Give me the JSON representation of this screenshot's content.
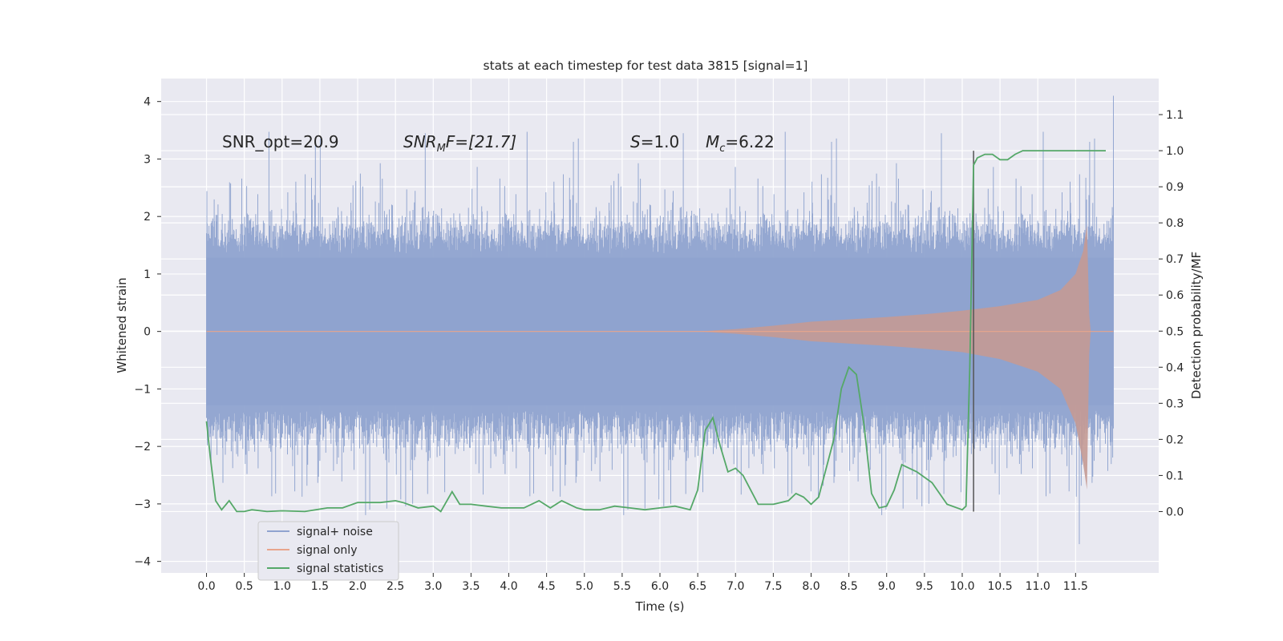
{
  "chart_data": {
    "type": "line",
    "title": "stats at each timestep for test data 3815 [signal=1]",
    "xlabel": "Time (s)",
    "ylabel": "Whitened strain",
    "ylabel_right": "Detection probability/MF",
    "xlim": [
      -0.6,
      12.6
    ],
    "ylim": [
      -4.2,
      4.4
    ],
    "ylim_right": [
      -0.17,
      1.2
    ],
    "x_ticks": [
      "0.0",
      "0.5",
      "1.0",
      "1.5",
      "2.0",
      "2.5",
      "3.0",
      "3.5",
      "4.0",
      "4.5",
      "5.0",
      "5.5",
      "6.0",
      "6.5",
      "7.0",
      "7.5",
      "8.0",
      "8.5",
      "9.0",
      "9.5",
      "10.0",
      "10.5",
      "11.0",
      "11.5"
    ],
    "y_ticks": [
      "4",
      "3",
      "2",
      "1",
      "0",
      "−1",
      "−2",
      "−3",
      "−4"
    ],
    "y_ticks_right": [
      "1.1",
      "1.0",
      "0.9",
      "0.8",
      "0.7",
      "0.6",
      "0.5",
      "0.4",
      "0.3",
      "0.2",
      "0.1",
      "0.0"
    ],
    "grid": true,
    "legend_position": "bottom-left",
    "annotations": {
      "snr_opt": "SNR_opt=20.9",
      "snr_mf_base": "SNR",
      "snr_mf_sub": "M",
      "snr_mf_rest": "F=[21.7]",
      "s_var": "S",
      "s_rest": "=1.0",
      "mc_var": "M",
      "mc_sub": "c",
      "mc_rest": "=6.22"
    },
    "series": [
      {
        "name": "signal+ noise",
        "color": "#8fa3cf",
        "band": {
          "x_range": [
            0.0,
            12.0
          ],
          "typical_amplitude": 1.35,
          "peak_extremes": [
            4.1,
            -3.7
          ]
        }
      },
      {
        "name": "signal only",
        "color": "#e8a58c",
        "fill": "#c49a94",
        "envelope": {
          "x": [
            0.0,
            6.5,
            7.0,
            7.5,
            8.0,
            8.5,
            9.0,
            9.5,
            10.0,
            10.5,
            11.0,
            11.3,
            11.5,
            11.6,
            11.65,
            11.68,
            11.7
          ],
          "y": [
            0.0,
            0.0,
            0.04,
            0.1,
            0.17,
            0.21,
            0.25,
            0.3,
            0.36,
            0.44,
            0.55,
            0.72,
            1.0,
            1.4,
            1.85,
            0.3,
            0.0
          ],
          "y_low": [
            0.0,
            0.0,
            -0.04,
            -0.1,
            -0.17,
            -0.21,
            -0.25,
            -0.3,
            -0.36,
            -0.48,
            -0.7,
            -1.0,
            -1.6,
            -2.3,
            -2.75,
            -0.4,
            0.0
          ]
        }
      },
      {
        "name": "signal statistics",
        "color": "#55a868",
        "axis": "right",
        "x": [
          0.0,
          0.05,
          0.12,
          0.2,
          0.3,
          0.4,
          0.5,
          0.6,
          0.8,
          1.0,
          1.3,
          1.6,
          1.8,
          2.0,
          2.3,
          2.5,
          2.6,
          2.8,
          3.0,
          3.1,
          3.25,
          3.35,
          3.5,
          3.7,
          3.9,
          4.0,
          4.2,
          4.4,
          4.55,
          4.7,
          4.9,
          5.0,
          5.2,
          5.4,
          5.6,
          5.8,
          6.0,
          6.2,
          6.4,
          6.5,
          6.6,
          6.7,
          6.8,
          6.9,
          7.0,
          7.1,
          7.2,
          7.3,
          7.5,
          7.7,
          7.8,
          7.9,
          8.0,
          8.1,
          8.3,
          8.4,
          8.5,
          8.55,
          8.6,
          8.7,
          8.8,
          8.9,
          9.0,
          9.1,
          9.2,
          9.3,
          9.4,
          9.6,
          9.8,
          10.0,
          10.05,
          10.1,
          10.15,
          10.2,
          10.3,
          10.4,
          10.5,
          10.6,
          10.7,
          10.8,
          11.0,
          11.5,
          11.9
        ],
        "y": [
          0.25,
          0.15,
          0.03,
          0.005,
          0.03,
          0.0,
          0.0,
          0.005,
          0.0,
          0.002,
          0.0,
          0.01,
          0.01,
          0.025,
          0.025,
          0.03,
          0.025,
          0.01,
          0.015,
          0.0,
          0.055,
          0.02,
          0.02,
          0.015,
          0.01,
          0.01,
          0.01,
          0.03,
          0.01,
          0.03,
          0.01,
          0.005,
          0.005,
          0.015,
          0.01,
          0.005,
          0.01,
          0.015,
          0.005,
          0.06,
          0.225,
          0.26,
          0.18,
          0.11,
          0.12,
          0.1,
          0.06,
          0.02,
          0.02,
          0.03,
          0.05,
          0.04,
          0.02,
          0.04,
          0.2,
          0.34,
          0.4,
          0.39,
          0.38,
          0.24,
          0.05,
          0.01,
          0.015,
          0.06,
          0.13,
          0.12,
          0.11,
          0.08,
          0.02,
          0.005,
          0.015,
          0.4,
          0.96,
          0.98,
          0.99,
          0.99,
          0.975,
          0.975,
          0.99,
          1.0,
          1.0,
          1.0,
          1.0
        ]
      }
    ],
    "vertical_marker_x": 10.15
  }
}
